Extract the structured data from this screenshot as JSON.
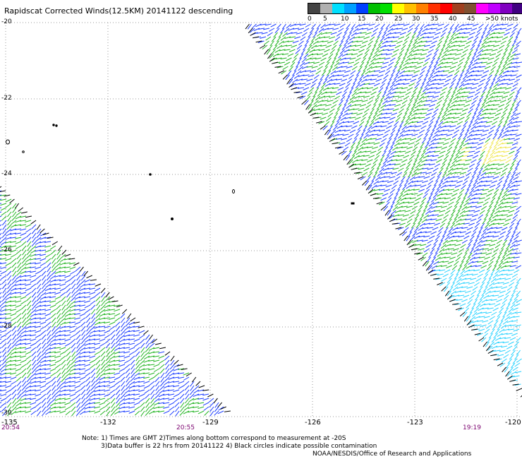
{
  "title": "Rapidscat Corrected Winds(12.5KM) 20141122 descending",
  "legend": {
    "labels": [
      "0",
      "5",
      "10",
      "15",
      "20",
      "25",
      "30",
      "35",
      "40",
      "45",
      ">50 knots"
    ],
    "colors": [
      "#444444",
      "#b0b0b0",
      "#00e0ff",
      "#00a0ff",
      "#0040ff",
      "#00c000",
      "#00e000",
      "#ffff00",
      "#ffc000",
      "#ff8000",
      "#ff3000",
      "#ff0000",
      "#a04020",
      "#805030",
      "#ff00ff",
      "#c000ff",
      "#8000c0",
      "#400080"
    ]
  },
  "lat_labels": [
    "-20",
    "-22",
    "-24",
    "-26",
    "-28",
    "-30"
  ],
  "lon_labels": [
    "-135",
    "-132",
    "-129",
    "-126",
    "-123",
    "-120"
  ],
  "time_labels": [
    "20:54",
    "20:55",
    "19:19"
  ],
  "notes": {
    "line1": "Note: 1) Times are GMT 2)Times along bottom correspond to measurement at -20S",
    "line2": "3)Data buffer is 22 hrs from 20141122 4) Black circles indicate possible contamination",
    "line3": "NOAA/NESDIS/Office of Research and Applications"
  },
  "wind_colors": {
    "blue": "#1a3cff",
    "green": "#22b422",
    "cyan": "#28d2ff",
    "yellow": "#f0e64a",
    "black": "#000000"
  }
}
